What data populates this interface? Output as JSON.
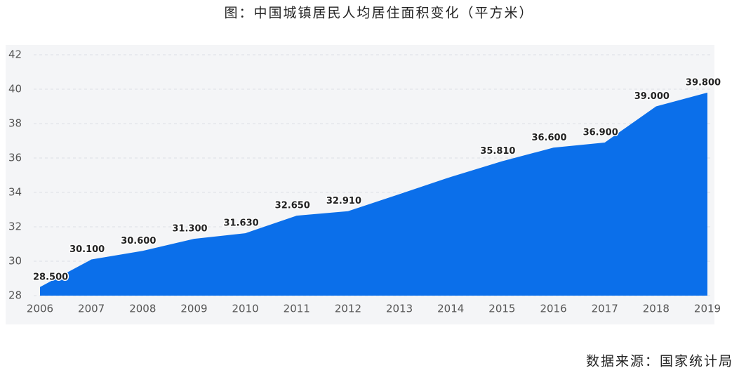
{
  "chart_data": {
    "type": "area",
    "title": "图：中国城镇居民人均居住面积变化（平方米）",
    "categories": [
      "2006",
      "2007",
      "2008",
      "2009",
      "2010",
      "2011",
      "2012",
      "2013",
      "2014",
      "2015",
      "2016",
      "2017",
      "2018",
      "2019"
    ],
    "values": [
      28.5,
      30.1,
      30.6,
      31.3,
      31.63,
      32.65,
      32.91,
      33.9,
      34.9,
      35.81,
      36.6,
      36.9,
      39.0,
      39.8
    ],
    "value_labels": [
      "28.500",
      "30.100",
      "30.600",
      "31.300",
      "31.630",
      "32.650",
      "32.910",
      null,
      null,
      "35.810",
      "36.600",
      "36.900",
      "39.000",
      "39.800"
    ],
    "color": "#0b6fea",
    "ylim": [
      28,
      42
    ],
    "yticks": [
      28,
      30,
      32,
      34,
      36,
      38,
      40,
      42
    ],
    "grid": true,
    "source": "数据来源：国家统计局"
  }
}
